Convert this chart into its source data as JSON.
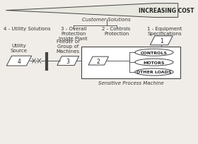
{
  "arrow_text": "INCREASING COST",
  "customer_solutions_text": "Customer Solutions",
  "bottom_label": "Sensitive Process Machine",
  "labels": {
    "zone4": "4 - Utility Solutions",
    "zone3": "3 - Overall\nProtection\nInside Plant",
    "zone2": "2 - Controls\nProtection",
    "zone1": "1 - Equipment\nSpecifications"
  },
  "utility_label": "Utility\nSource",
  "feeder_label": "Feeder or\nGroup of\nMachines",
  "box_labels": [
    "CONTROLS",
    "MOTORS",
    "OTHER LOADS"
  ],
  "bg_color": "#f0ede8",
  "line_color": "#444444",
  "arrow_fill": "#e8e8e0"
}
